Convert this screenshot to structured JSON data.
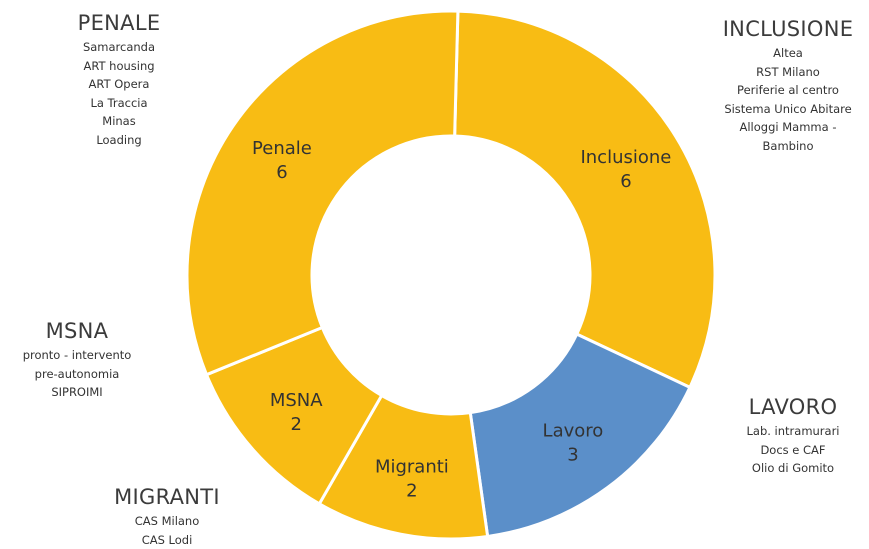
{
  "colors": {
    "yellow": "#F8BC14",
    "blue": "#5B8FC9",
    "border": "#FFFFFF",
    "text": "#333333"
  },
  "chart_data": {
    "type": "pie",
    "title": "",
    "donut": true,
    "categories": [
      "Inclusione",
      "Lavoro",
      "Migranti",
      "MSNA",
      "Penale"
    ],
    "values": [
      6,
      3,
      2,
      2,
      6
    ],
    "colors": [
      "#F8BC14",
      "#5B8FC9",
      "#F8BC14",
      "#F8BC14",
      "#F8BC14"
    ],
    "data_labels": true,
    "legend": "none"
  },
  "annotations": {
    "penale": {
      "title": "PENALE",
      "items": [
        "Samarcanda",
        "ART housing",
        "ART Opera",
        "La Traccia",
        "Minas",
        "Loading"
      ]
    },
    "inclusione": {
      "title": "INCLUSIONE",
      "items": [
        "Altea",
        "RST Milano",
        "Periferie al centro",
        "Sistema Unico Abitare",
        "Alloggi Mamma -",
        "Bambino"
      ]
    },
    "msna": {
      "title": "MSNA",
      "items": [
        "pronto - intervento",
        "pre-autonomia",
        "SIPROIMI"
      ]
    },
    "lavoro": {
      "title": "LAVORO",
      "items": [
        "Lab. intramurari",
        "Docs e CAF",
        "Olio di Gomito"
      ]
    },
    "migranti": {
      "title": "MIGRANTI",
      "items": [
        "CAS Milano",
        "CAS Lodi"
      ]
    }
  }
}
